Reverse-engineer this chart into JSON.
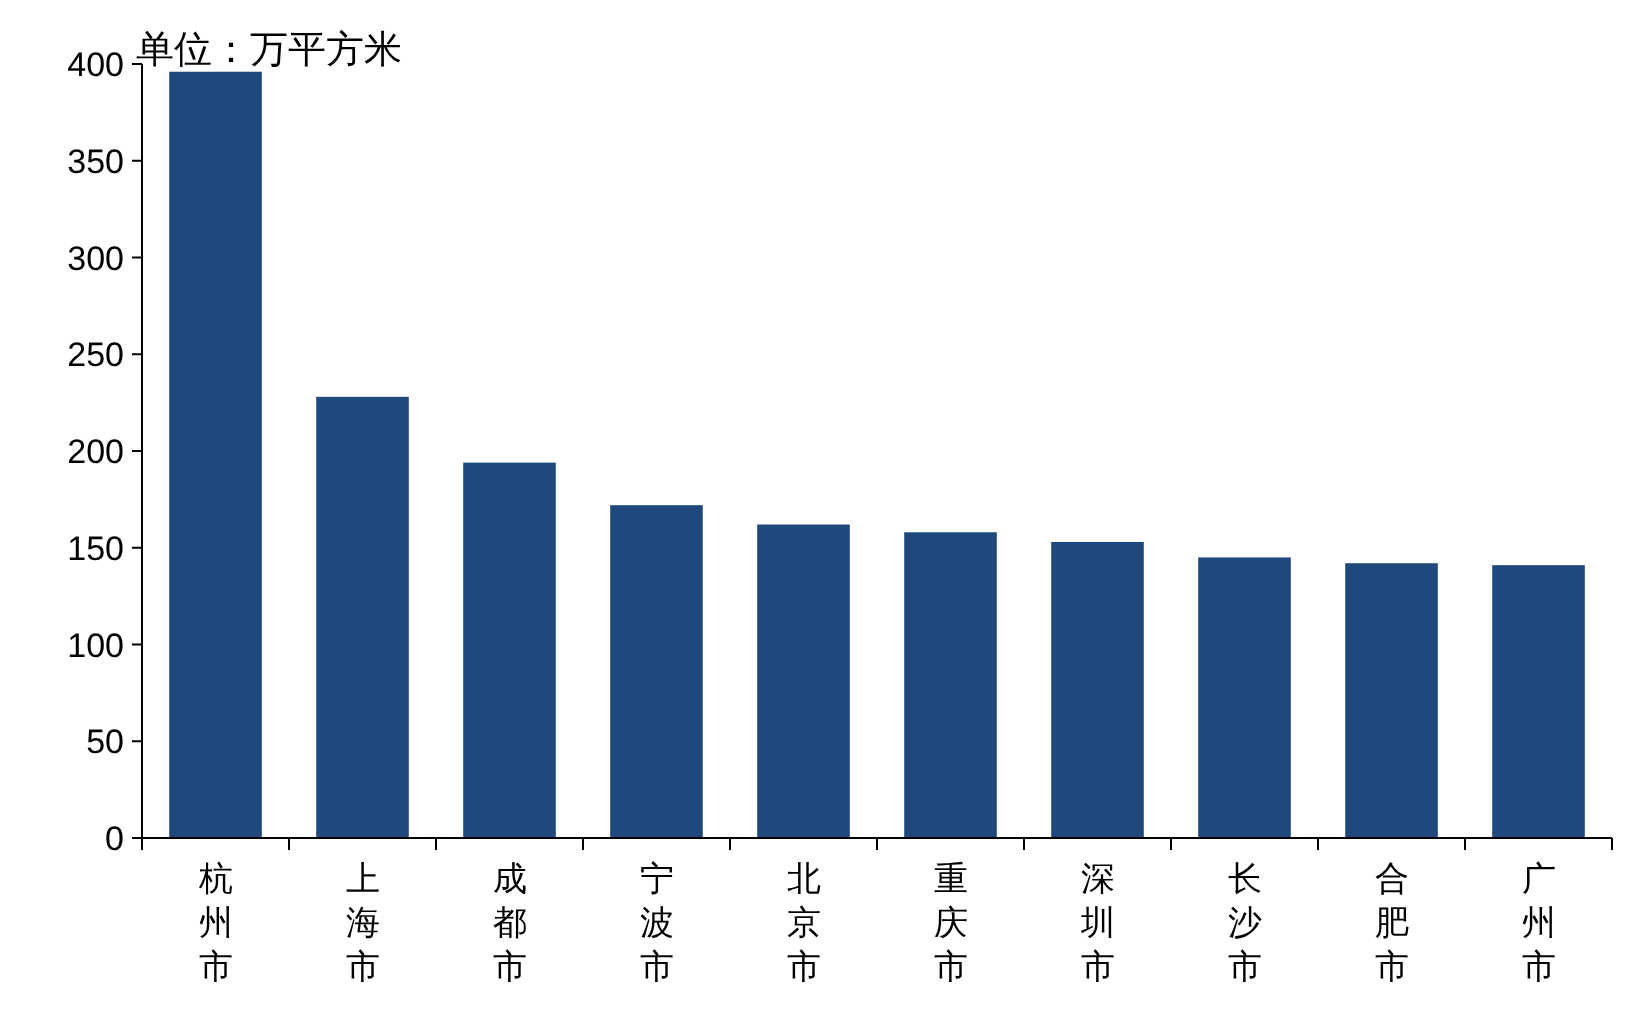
{
  "chart_data": {
    "type": "bar",
    "ylabel": "单位：万平方米",
    "categories": [
      "杭州市",
      "上海市",
      "成都市",
      "宁波市",
      "北京市",
      "重庆市",
      "深圳市",
      "长沙市",
      "合肥市",
      "广州市"
    ],
    "values": [
      396,
      228,
      194,
      172,
      162,
      158,
      153,
      145,
      142,
      141
    ],
    "color": "#1f497d",
    "ylim": [
      0,
      400
    ],
    "yticks": [
      0,
      50,
      100,
      150,
      200,
      250,
      300,
      350,
      400
    ]
  }
}
